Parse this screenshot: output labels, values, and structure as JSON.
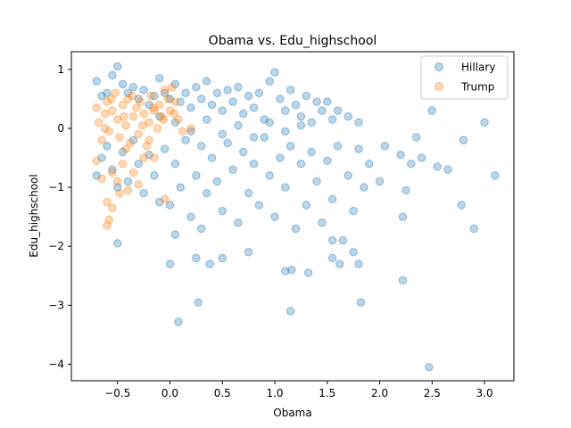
{
  "chart_data": {
    "type": "scatter",
    "title": "Obama vs. Edu_highschool",
    "xlabel": "Obama",
    "ylabel": "Edu_highschool",
    "xlim": [
      -0.94,
      3.28
    ],
    "ylim": [
      -4.28,
      1.3
    ],
    "xticks": [
      -0.5,
      0.0,
      0.5,
      1.0,
      1.5,
      2.0,
      2.5,
      3.0
    ],
    "xtick_labels": [
      "−0.5",
      "0.0",
      "0.5",
      "1.0",
      "1.5",
      "2.0",
      "2.5",
      "3.0"
    ],
    "yticks": [
      -4,
      -3,
      -2,
      -1,
      0,
      1
    ],
    "ytick_labels": [
      "−4",
      "−3",
      "−2",
      "−1",
      "0",
      "1"
    ],
    "grid": false,
    "legend": "top-right",
    "series": [
      {
        "name": "Hillary",
        "color": "#1f77b4",
        "points": [
          [
            -0.7,
            0.8
          ],
          [
            -0.65,
            0.55
          ],
          [
            -0.6,
            0.6
          ],
          [
            -0.55,
            0.9
          ],
          [
            -0.5,
            1.05
          ],
          [
            -0.45,
            0.75
          ],
          [
            -0.4,
            0.6
          ],
          [
            -0.35,
            0.7
          ],
          [
            -0.3,
            0.5
          ],
          [
            -0.25,
            0.65
          ],
          [
            -0.2,
            0.4
          ],
          [
            -0.15,
            0.55
          ],
          [
            -0.1,
            0.85
          ],
          [
            -0.05,
            0.6
          ],
          [
            0.0,
            0.5
          ],
          [
            0.05,
            0.75
          ],
          [
            0.1,
            0.45
          ],
          [
            0.15,
            0.6
          ],
          [
            0.2,
            0.35
          ],
          [
            0.25,
            0.7
          ],
          [
            0.3,
            0.5
          ],
          [
            0.35,
            0.8
          ],
          [
            0.4,
            0.4
          ],
          [
            0.45,
            0.6
          ],
          [
            0.5,
            0.3
          ],
          [
            0.55,
            0.65
          ],
          [
            0.6,
            0.45
          ],
          [
            0.65,
            0.7
          ],
          [
            0.7,
            0.25
          ],
          [
            0.75,
            0.55
          ],
          [
            0.8,
            0.35
          ],
          [
            0.85,
            0.6
          ],
          [
            0.9,
            0.15
          ],
          [
            0.95,
            0.8
          ],
          [
            1.0,
            0.95
          ],
          [
            1.05,
            0.5
          ],
          [
            1.1,
            0.3
          ],
          [
            1.15,
            0.65
          ],
          [
            1.2,
            0.4
          ],
          [
            1.25,
            0.2
          ],
          [
            1.3,
            0.55
          ],
          [
            1.35,
            0.1
          ],
          [
            1.4,
            0.45
          ],
          [
            1.45,
            0.3
          ],
          [
            1.5,
            0.45
          ],
          [
            1.55,
            0.15
          ],
          [
            1.6,
            0.3
          ],
          [
            1.7,
            0.2
          ],
          [
            1.8,
            0.1
          ],
          [
            2.5,
            0.3
          ],
          [
            -0.7,
            -0.8
          ],
          [
            -0.65,
            -0.5
          ],
          [
            -0.6,
            -0.3
          ],
          [
            -0.55,
            -0.7
          ],
          [
            -0.5,
            -1.0
          ],
          [
            -0.45,
            -0.4
          ],
          [
            -0.4,
            -0.9
          ],
          [
            -0.35,
            -0.2
          ],
          [
            -0.3,
            -0.6
          ],
          [
            -0.25,
            -1.1
          ],
          [
            -0.2,
            -0.45
          ],
          [
            -0.15,
            -0.8
          ],
          [
            -0.1,
            -1.25
          ],
          [
            -0.05,
            -0.35
          ],
          [
            0.0,
            -1.3
          ],
          [
            0.05,
            -0.6
          ],
          [
            0.1,
            -1.0
          ],
          [
            0.15,
            -0.2
          ],
          [
            0.2,
            -1.5
          ],
          [
            0.25,
            -0.8
          ],
          [
            0.3,
            -0.3
          ],
          [
            0.35,
            -1.1
          ],
          [
            0.4,
            -0.5
          ],
          [
            0.45,
            -0.9
          ],
          [
            0.5,
            -1.4
          ],
          [
            0.55,
            -0.25
          ],
          [
            0.6,
            -0.7
          ],
          [
            0.65,
            -1.6
          ],
          [
            0.7,
            -0.4
          ],
          [
            0.75,
            -1.1
          ],
          [
            0.8,
            -0.6
          ],
          [
            0.85,
            -1.3
          ],
          [
            0.9,
            -0.15
          ],
          [
            0.95,
            -0.8
          ],
          [
            1.0,
            -1.5
          ],
          [
            1.05,
            -0.5
          ],
          [
            1.1,
            -1.0
          ],
          [
            1.15,
            -0.3
          ],
          [
            1.2,
            -1.7
          ],
          [
            1.25,
            -0.6
          ],
          [
            1.3,
            -1.3
          ],
          [
            1.35,
            -0.4
          ],
          [
            1.4,
            -0.9
          ],
          [
            1.45,
            -1.6
          ],
          [
            1.5,
            -0.55
          ],
          [
            1.55,
            -1.2
          ],
          [
            1.6,
            -0.3
          ],
          [
            1.65,
            -1.9
          ],
          [
            1.7,
            -0.8
          ],
          [
            1.75,
            -1.4
          ],
          [
            1.8,
            -0.35
          ],
          [
            1.85,
            -1.0
          ],
          [
            1.9,
            -0.6
          ],
          [
            2.0,
            -0.9
          ],
          [
            2.05,
            -0.3
          ],
          [
            2.2,
            -0.45
          ],
          [
            2.25,
            -1.05
          ],
          [
            2.3,
            -0.6
          ],
          [
            2.35,
            -0.15
          ],
          [
            2.4,
            -0.5
          ],
          [
            2.55,
            -0.65
          ],
          [
            2.65,
            -0.7
          ],
          [
            2.8,
            -0.2
          ],
          [
            2.9,
            -1.7
          ],
          [
            3.0,
            0.1
          ],
          [
            3.1,
            -0.8
          ],
          [
            2.78,
            -1.3
          ],
          [
            2.22,
            -1.5
          ],
          [
            2.22,
            -2.58
          ],
          [
            2.47,
            -4.05
          ],
          [
            -0.5,
            -1.95
          ],
          [
            0.0,
            -2.3
          ],
          [
            0.08,
            -3.28
          ],
          [
            0.25,
            -2.2
          ],
          [
            0.38,
            -2.3
          ],
          [
            0.27,
            -2.95
          ],
          [
            0.5,
            -2.2
          ],
          [
            0.75,
            -2.1
          ],
          [
            1.1,
            -2.42
          ],
          [
            1.15,
            -3.1
          ],
          [
            1.16,
            -2.4
          ],
          [
            1.32,
            -2.45
          ],
          [
            1.55,
            -2.2
          ],
          [
            1.75,
            -2.1
          ],
          [
            1.8,
            -2.3
          ],
          [
            1.82,
            -2.95
          ],
          [
            1.62,
            -2.3
          ],
          [
            0.05,
            -1.8
          ],
          [
            0.3,
            -1.7
          ],
          [
            1.55,
            -1.9
          ],
          [
            -0.1,
            0.2
          ],
          [
            0.05,
            0.1
          ],
          [
            0.2,
            -0.05
          ],
          [
            0.35,
            0.15
          ],
          [
            0.5,
            -0.1
          ],
          [
            0.65,
            0.05
          ],
          [
            0.8,
            -0.15
          ],
          [
            0.95,
            0.1
          ],
          [
            1.1,
            -0.05
          ],
          [
            1.25,
            0.05
          ]
        ]
      },
      {
        "name": "Trump",
        "color": "#ff7f0e",
        "points": [
          [
            -0.7,
            0.35
          ],
          [
            -0.68,
            0.1
          ],
          [
            -0.65,
            -0.2
          ],
          [
            -0.62,
            0.25
          ],
          [
            -0.6,
            0.45
          ],
          [
            -0.58,
            -0.05
          ],
          [
            -0.55,
            0.3
          ],
          [
            -0.52,
            0.6
          ],
          [
            -0.5,
            0.15
          ],
          [
            -0.48,
            -0.15
          ],
          [
            -0.45,
            0.4
          ],
          [
            -0.42,
            0.05
          ],
          [
            -0.4,
            0.5
          ],
          [
            -0.38,
            -0.25
          ],
          [
            -0.35,
            0.2
          ],
          [
            -0.32,
            0.35
          ],
          [
            -0.3,
            -0.1
          ],
          [
            -0.28,
            0.45
          ],
          [
            -0.25,
            0.25
          ],
          [
            -0.22,
            -0.3
          ],
          [
            -0.2,
            0.1
          ],
          [
            -0.18,
            0.55
          ],
          [
            -0.15,
            0.3
          ],
          [
            -0.12,
            0.0
          ],
          [
            -0.1,
            0.4
          ],
          [
            -0.08,
            0.2
          ],
          [
            -0.05,
            0.65
          ],
          [
            -0.02,
            0.5
          ],
          [
            0.0,
            0.3
          ],
          [
            0.02,
            0.7
          ],
          [
            0.05,
            0.45
          ],
          [
            0.08,
            0.15
          ],
          [
            -0.7,
            -0.55
          ],
          [
            -0.65,
            -0.85
          ],
          [
            -0.6,
            -1.25
          ],
          [
            -0.58,
            -1.55
          ],
          [
            -0.55,
            -1.35
          ],
          [
            -0.5,
            -0.9
          ],
          [
            -0.45,
            -0.6
          ],
          [
            -0.6,
            -1.65
          ],
          [
            -0.4,
            -1.05
          ],
          [
            -0.35,
            -0.75
          ],
          [
            -0.3,
            -0.95
          ],
          [
            -0.25,
            -0.5
          ],
          [
            -0.2,
            -0.2
          ],
          [
            -0.55,
            -0.75
          ],
          [
            -0.48,
            -1.1
          ],
          [
            -0.42,
            -0.35
          ],
          [
            -0.15,
            -0.5
          ],
          [
            -0.05,
            -1.2
          ],
          [
            -0.62,
            0.0
          ],
          [
            -0.56,
            0.5
          ],
          [
            -0.44,
            0.2
          ],
          [
            -0.36,
            0.55
          ],
          [
            -0.26,
            0.05
          ],
          [
            -0.16,
            0.35
          ],
          [
            -0.06,
            0.15
          ],
          [
            0.04,
            0.25
          ],
          [
            0.12,
            -0.05
          ],
          [
            0.2,
            0.0
          ]
        ]
      }
    ]
  }
}
